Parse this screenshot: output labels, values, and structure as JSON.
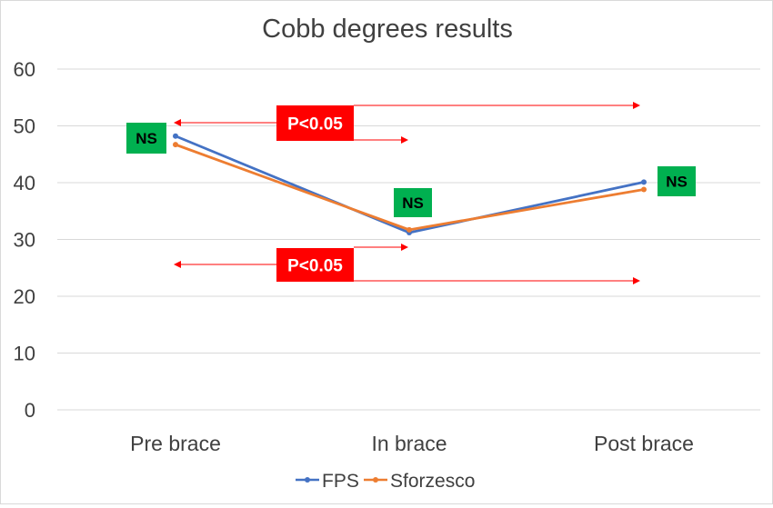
{
  "chart_data": {
    "type": "line",
    "title": "Cobb degrees results",
    "categories": [
      "Pre brace",
      "In brace",
      "Post brace"
    ],
    "ylim": [
      0,
      60
    ],
    "yticks": [
      0,
      10,
      20,
      30,
      40,
      50,
      60
    ],
    "grid": true,
    "legend_position": "bottom",
    "series": [
      {
        "name": "FPS",
        "values": [
          48.2,
          31.2,
          40.1
        ],
        "color": "#4472C4"
      },
      {
        "name": "Sforzesco",
        "values": [
          46.7,
          31.7,
          38.8
        ],
        "color": "#ED7D31"
      }
    ],
    "annotations": {
      "ns_label": "NS",
      "ns_color": "#00B050",
      "p_label": "P<0.05",
      "p_color": "#FF0000",
      "arrow_color": "#FF0000"
    }
  }
}
